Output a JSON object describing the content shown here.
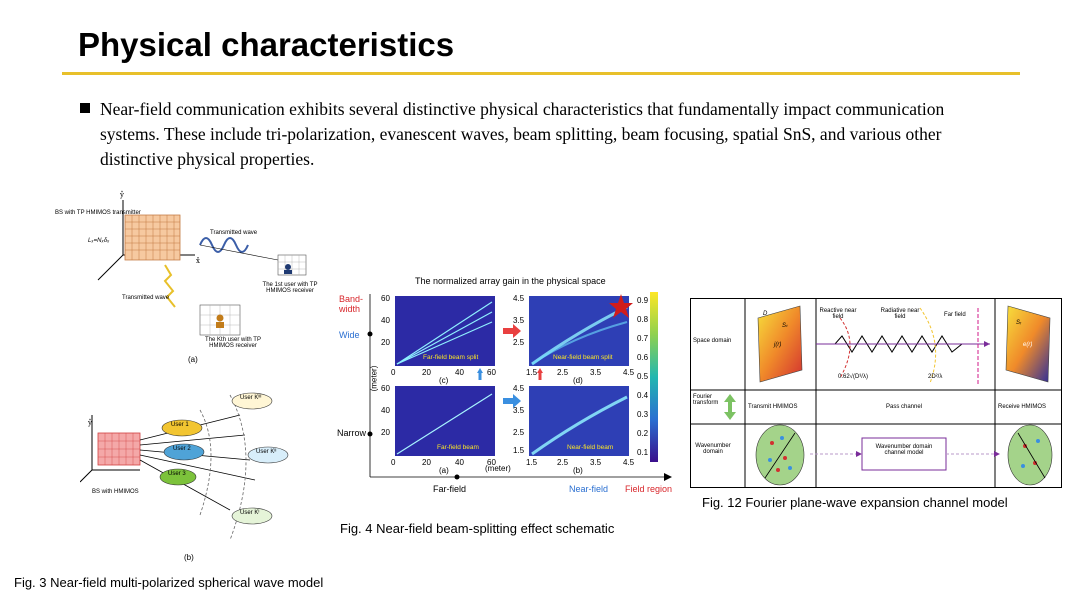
{
  "slide": {
    "title": "Physical characteristics",
    "accent_color": "#e8c02a",
    "bullet": "Near-field communication exhibits several distinctive physical characteristics that fundamentally impact communication systems. These include tri-polarization, evanescent waves, beam splitting, beam focusing, spatial SnS, and various other distinctive physical properties."
  },
  "fig3": {
    "caption": "Fig. 3  Near-field multi-polarized spherical wave model",
    "a": {
      "bs_label": "BS with TP HMIMOS transmitter",
      "dims_label": "Lₓ=Nₓδₓ",
      "tx_wave_top": "Transmitted wave",
      "tx_wave_bottom": "Transmitted wave",
      "user1_label": "The 1st user with TP HMIMOS receiver",
      "userk_label": "The Kth user with TP HMIMOS receiver",
      "panel": "(a)"
    },
    "b": {
      "bs_label": "BS with HMIMOS",
      "users": [
        "User 1",
        "User 2",
        "User 3"
      ],
      "userk_labels": [
        "User Kᴵᴵᴵ",
        "User Kᴵᴵ",
        "User Kᴵ"
      ],
      "panel": "(b)"
    }
  },
  "fig4": {
    "caption": "Fig. 4  Near-field beam-splitting effect schematic",
    "title": "The normalized array gain in the physical space",
    "y_group_bandwidth": "Band-\nwidth",
    "wide": "Wide",
    "narrow": "Narrow",
    "ylabel": "(meter)",
    "xlabel": "(meter)",
    "panels": [
      {
        "id": "(c)",
        "label": "Far-field beam split"
      },
      {
        "id": "(d)",
        "label": "Near-field beam split"
      },
      {
        "id": "(a)",
        "label": "Far-field beam"
      },
      {
        "id": "(b)",
        "label": "Near-field beam"
      }
    ],
    "left_x_ticks": [
      "0",
      "20",
      "40",
      "60"
    ],
    "left_y_ticks": [
      "60",
      "40",
      "20",
      "0"
    ],
    "right_x_ticks": [
      "1.5",
      "2.5",
      "3.5",
      "4.5"
    ],
    "right_y_ticks": [
      "4.5",
      "3.5",
      "2.5",
      "1.5"
    ],
    "colorbar_ticks": [
      "0.9",
      "0.8",
      "0.7",
      "0.6",
      "0.5",
      "0.4",
      "0.3",
      "0.2",
      "0.1"
    ],
    "bottom_far": "Far-field",
    "bottom_near": "Near-field",
    "bottom_region": "Field region"
  },
  "fig12": {
    "caption": "Fig. 12  Fourier plane-wave expansion channel model",
    "row_labels": [
      "Space domain",
      "Fourier transform",
      "Wavenumber domain"
    ],
    "reactive": "Reactive near field",
    "radiative": "Radiative near field",
    "far": "Far field",
    "d_label": "D",
    "s_t": "Sₜ",
    "j_r": "j(r)",
    "s_r": "Sᵣ",
    "e_r": "e(r)",
    "formula_left": "0.62√(D³/λ)",
    "formula_right": "2D²/λ",
    "transmit": "Transmit HMIMOS",
    "pass": "Pass channel",
    "receive": "Receive HMIMOS",
    "channel_box": "Wavenumber domain channel model"
  }
}
